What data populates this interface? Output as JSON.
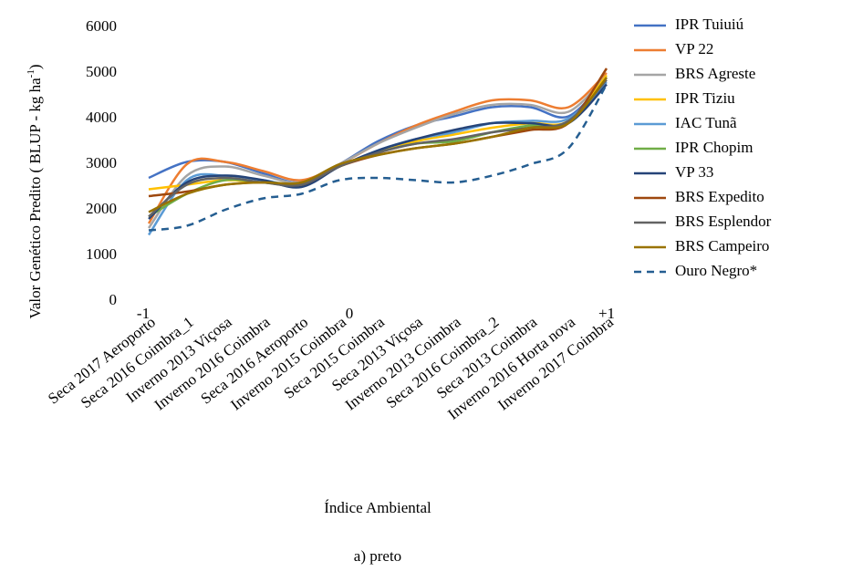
{
  "chart_data": {
    "type": "line",
    "ylabel": "Valor Genético Predito ( BLUP - kg ha",
    "ylabel_sup": "-1",
    "ylabel_end": ")",
    "xlabel": "Índice Ambiental",
    "caption": "a)   preto",
    "annotations": [
      "-1",
      "0",
      "+1"
    ],
    "categories": [
      "Seca 2017 Aeroporto",
      "Seca 2016 Coimbra_1",
      "Inverno 2013 Viçosa",
      "Inverno 2016 Coimbra",
      "Seca 2016 Aeroporto",
      "Inverno 2015 Coimbra",
      "Seca 2015 Coimbra",
      "Seca 2013 Viçosa",
      "Inverno 2013 Coimbra",
      "Seca 2016 Coimbra_2",
      "Seca 2013 Coimbra",
      "Inverno 2016 Horta nova",
      "Inverno 2017 Coimbra"
    ],
    "ylim": [
      0,
      6000
    ],
    "yticks": [
      0,
      1000,
      2000,
      3000,
      4000,
      5000,
      6000
    ],
    "grid": false,
    "legend": "right",
    "series": [
      {
        "name": "IPR Tuiuiú",
        "color": "#4472c4",
        "values": [
          2700,
          3050,
          3050,
          2800,
          2600,
          3000,
          3500,
          3850,
          4050,
          4250,
          4250,
          4050,
          4900
        ]
      },
      {
        "name": "VP 22",
        "color": "#ed7d31",
        "values": [
          1700,
          3000,
          3050,
          2850,
          2650,
          3000,
          3450,
          3850,
          4150,
          4400,
          4400,
          4250,
          5000
        ]
      },
      {
        "name": "BRS Agreste",
        "color": "#a5a5a5",
        "values": [
          1600,
          2750,
          2950,
          2750,
          2600,
          3000,
          3450,
          3800,
          4100,
          4300,
          4300,
          4150,
          4950
        ]
      },
      {
        "name": "IPR Tiziu",
        "color": "#ffc000",
        "values": [
          2450,
          2550,
          2650,
          2600,
          2550,
          2950,
          3250,
          3500,
          3650,
          3800,
          3900,
          3950,
          4950
        ]
      },
      {
        "name": "IAC Tunã",
        "color": "#5b9bd5",
        "values": [
          1450,
          2650,
          2750,
          2650,
          2550,
          2950,
          3300,
          3550,
          3700,
          3900,
          3950,
          4000,
          4800
        ]
      },
      {
        "name": "IPR Chopim",
        "color": "#70ad47",
        "values": [
          1850,
          2350,
          2650,
          2600,
          2550,
          2950,
          3250,
          3450,
          3500,
          3700,
          3850,
          3900,
          4900
        ]
      },
      {
        "name": "VP 33",
        "color": "#264478",
        "values": [
          1800,
          2600,
          2750,
          2650,
          2500,
          2950,
          3300,
          3550,
          3750,
          3900,
          3900,
          3900,
          4750
        ]
      },
      {
        "name": "BRS Expedito",
        "color": "#9e480e",
        "values": [
          2300,
          2400,
          2550,
          2600,
          2550,
          2950,
          3200,
          3350,
          3450,
          3600,
          3750,
          3900,
          5100
        ]
      },
      {
        "name": "BRS Esplendor",
        "color": "#636363",
        "values": [
          1850,
          2550,
          2700,
          2600,
          2550,
          2950,
          3250,
          3450,
          3550,
          3700,
          3800,
          3950,
          4850
        ]
      },
      {
        "name": "BRS Campeiro",
        "color": "#997300",
        "values": [
          1950,
          2350,
          2550,
          2600,
          2600,
          3000,
          3200,
          3350,
          3450,
          3600,
          3800,
          3900,
          4900
        ]
      },
      {
        "name": "Ouro Negro*",
        "color": "#255e91",
        "dashed": true,
        "values": [
          1550,
          1650,
          2000,
          2250,
          2350,
          2650,
          2700,
          2650,
          2600,
          2750,
          3000,
          3350,
          4750
        ]
      }
    ]
  }
}
